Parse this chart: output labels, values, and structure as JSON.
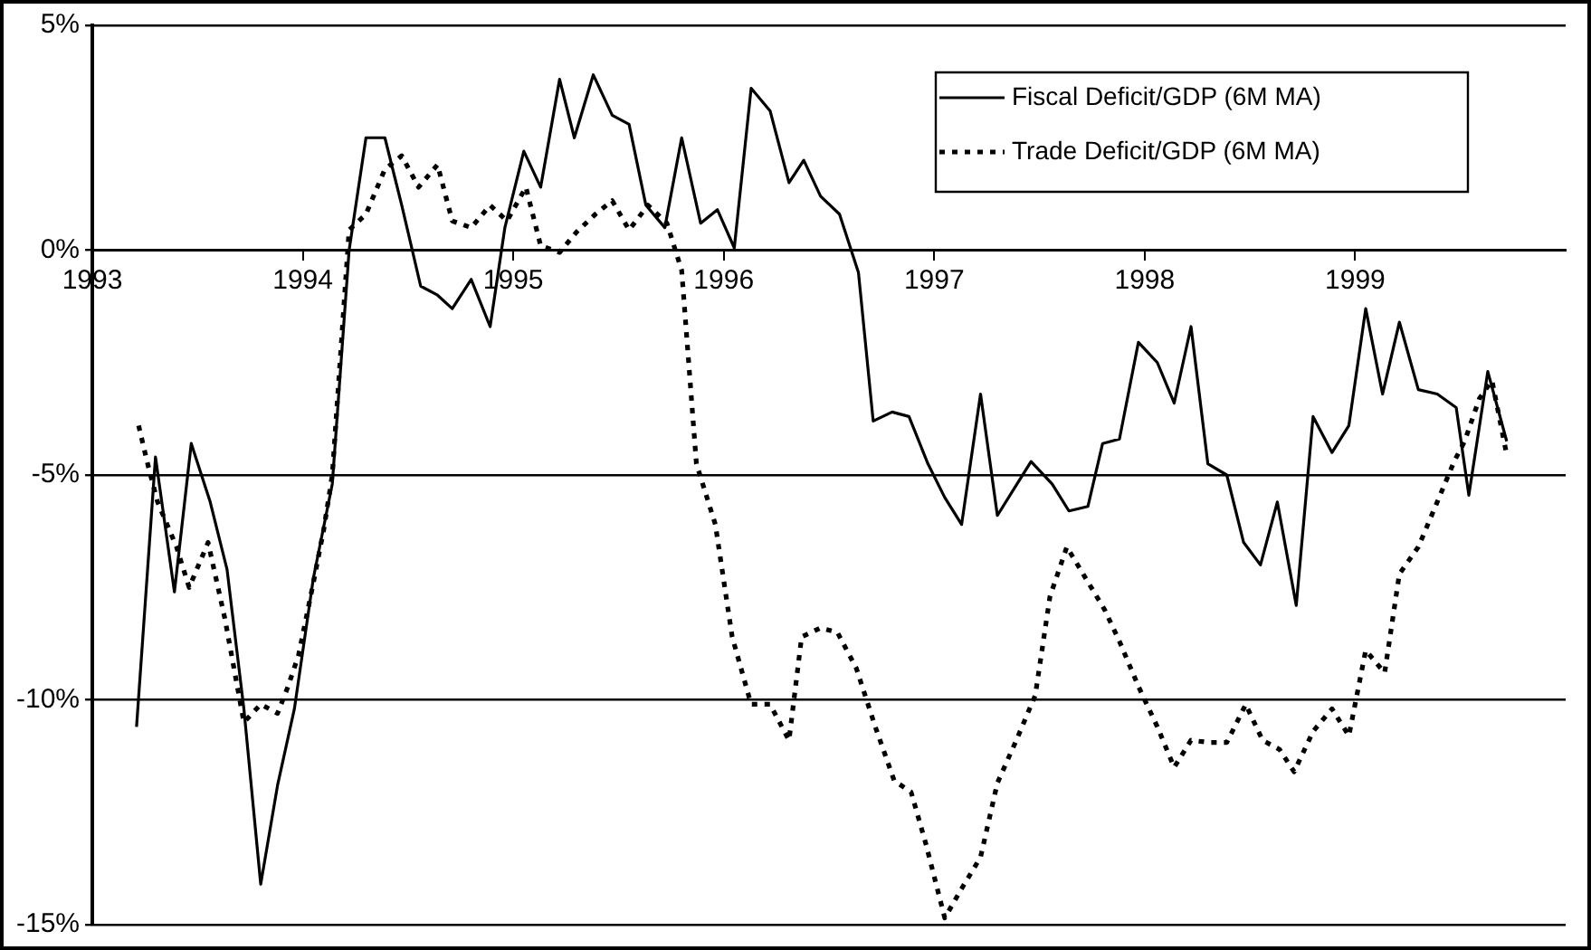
{
  "chart_data": {
    "type": "line",
    "xlim": [
      1993,
      2000
    ],
    "xticks": [
      1993,
      1994,
      1995,
      1996,
      1997,
      1998,
      1999
    ],
    "ylim": [
      -15,
      5
    ],
    "yticks": [
      {
        "value": -15,
        "label": "-15%"
      },
      {
        "value": -10,
        "label": "-10%"
      },
      {
        "value": -5,
        "label": "-5%"
      },
      {
        "value": 0,
        "label": "0%"
      },
      {
        "value": 5,
        "label": "5%"
      }
    ],
    "grid": "y",
    "legend": "top right",
    "series": [
      {
        "name": "Fiscal Deficit/GDP (6M MA)",
        "color": "#000000",
        "line_style": "solid",
        "x": [
          1993.21,
          1993.3,
          1993.39,
          1993.47,
          1993.56,
          1993.64,
          1993.72,
          1993.8,
          1993.88,
          1993.96,
          1994.05,
          1994.14,
          1994.22,
          1994.3,
          1994.39,
          1994.47,
          1994.56,
          1994.64,
          1994.71,
          1994.8,
          1994.89,
          1994.96,
          1995.05,
          1995.13,
          1995.22,
          1995.29,
          1995.38,
          1995.47,
          1995.55,
          1995.63,
          1995.72,
          1995.8,
          1995.89,
          1995.97,
          1996.05,
          1996.13,
          1996.22,
          1996.31,
          1996.38,
          1996.46,
          1996.55,
          1996.64,
          1996.71,
          1996.8,
          1996.88,
          1996.97,
          1997.05,
          1997.13,
          1997.22,
          1997.3,
          1997.38,
          1997.46,
          1997.56,
          1997.64,
          1997.73,
          1997.8,
          1997.88,
          1997.97,
          1998.06,
          1998.14,
          1998.22,
          1998.3,
          1998.39,
          1998.47,
          1998.55,
          1998.63,
          1998.72,
          1998.8,
          1998.89,
          1998.97,
          1999.05,
          1999.13,
          1999.21,
          1999.3,
          1999.39,
          1999.48,
          1999.54,
          1999.63,
          1999.72
        ],
        "values": [
          -10.6,
          -4.6,
          -7.6,
          -4.3,
          -5.6,
          -7.1,
          -10.2,
          -14.1,
          -11.9,
          -10.2,
          -7.3,
          -5.2,
          0,
          2.5,
          2.5,
          1.0,
          -0.8,
          -1.0,
          -1.3,
          -0.65,
          -1.7,
          0.5,
          2.2,
          1.4,
          3.8,
          2.5,
          3.9,
          3.0,
          2.8,
          1.0,
          0.5,
          2.5,
          0.6,
          0.9,
          0.05,
          3.6,
          3.1,
          1.5,
          2.0,
          1.2,
          0.8,
          -0.5,
          -3.8,
          -3.6,
          -3.7,
          -4.75,
          -5.5,
          -6.1,
          -3.2,
          -5.9,
          -5.3,
          -4.7,
          -5.2,
          -5.8,
          -5.7,
          -4.3,
          -4.2,
          -2.05,
          -2.5,
          -3.4,
          -1.7,
          -4.75,
          -5.0,
          -6.5,
          -7.0,
          -5.6,
          -7.9,
          -3.7,
          -4.5,
          -3.9,
          -1.3,
          -3.2,
          -1.6,
          -3.1,
          -3.2,
          -3.5,
          -5.45,
          -2.7,
          -4.25
        ]
      },
      {
        "name": "Trade Deficit/GDP (6M MA)",
        "color": "#000000",
        "line_style": "dotted",
        "x": [
          1993.22,
          1993.26,
          1993.31,
          1993.4,
          1993.46,
          1993.55,
          1993.63,
          1993.72,
          1993.8,
          1993.88,
          1993.93,
          1993.98,
          1994.05,
          1994.1,
          1994.14,
          1994.22,
          1994.3,
          1994.39,
          1994.47,
          1994.55,
          1994.64,
          1994.71,
          1994.8,
          1994.89,
          1994.97,
          1995.06,
          1995.13,
          1995.22,
          1995.3,
          1995.39,
          1995.47,
          1995.55,
          1995.64,
          1995.73,
          1995.8,
          1995.87,
          1995.96,
          1996.04,
          1996.13,
          1996.22,
          1996.31,
          1996.37,
          1996.46,
          1996.54,
          1996.63,
          1996.72,
          1996.81,
          1996.89,
          1996.96,
          1997.05,
          1997.13,
          1997.22,
          1997.3,
          1997.39,
          1997.48,
          1997.55,
          1997.63,
          1997.72,
          1997.81,
          1997.88,
          1997.97,
          1998.06,
          1998.14,
          1998.22,
          1998.31,
          1998.39,
          1998.48,
          1998.56,
          1998.64,
          1998.71,
          1998.8,
          1998.89,
          1998.97,
          1999.05,
          1999.14,
          1999.21,
          1999.3,
          1999.39,
          1999.47,
          1999.52,
          1999.59,
          1999.65,
          1999.72
        ],
        "values": [
          -3.9,
          -4.7,
          -5.6,
          -6.6,
          -7.5,
          -6.5,
          -8.2,
          -10.5,
          -10.1,
          -10.3,
          -9.7,
          -9.0,
          -7.4,
          -6.2,
          -5.0,
          0.45,
          0.8,
          1.8,
          2.1,
          1.4,
          1.9,
          0.65,
          0.5,
          1.0,
          0.65,
          1.4,
          0.1,
          -0.05,
          0.4,
          0.8,
          1.1,
          0.45,
          1.0,
          0.6,
          -0.45,
          -4.75,
          -6.1,
          -8.6,
          -10.1,
          -10.1,
          -10.9,
          -8.6,
          -8.4,
          -8.5,
          -9.3,
          -10.6,
          -11.8,
          -12.05,
          -13.2,
          -14.85,
          -14.2,
          -13.5,
          -11.85,
          -10.9,
          -9.9,
          -7.7,
          -6.6,
          -7.3,
          -8.0,
          -8.7,
          -9.7,
          -10.6,
          -11.5,
          -10.9,
          -10.95,
          -10.95,
          -10.1,
          -10.9,
          -11.1,
          -11.6,
          -10.7,
          -10.2,
          -10.8,
          -8.9,
          -9.4,
          -7.2,
          -6.6,
          -5.6,
          -4.7,
          -4.25,
          -3.3,
          -2.9,
          -4.55
        ]
      }
    ]
  }
}
